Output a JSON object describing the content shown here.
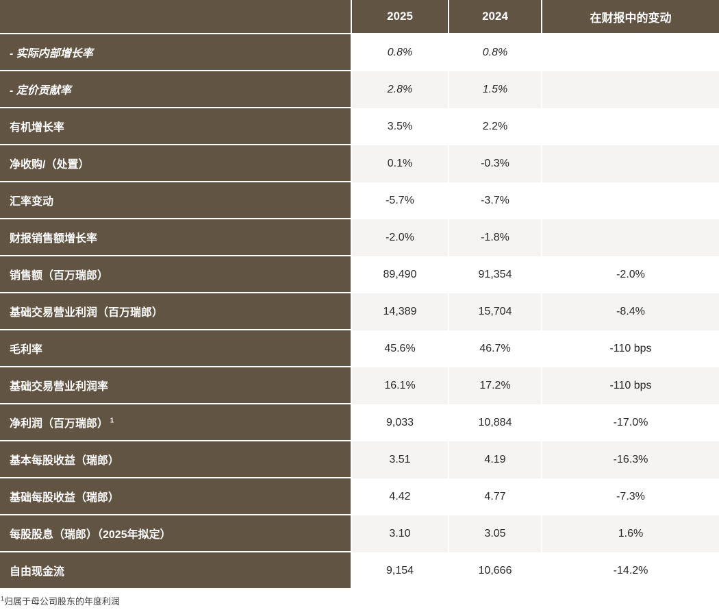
{
  "table": {
    "columns": [
      "",
      "2025",
      "2024",
      "在财报中的变动"
    ],
    "rows": [
      {
        "label": "- 实际内部增长率",
        "v2025": "0.8%",
        "v2024": "0.8%",
        "change": "",
        "italic": true
      },
      {
        "label": "- 定价贡献率",
        "v2025": "2.8%",
        "v2024": "1.5%",
        "change": "",
        "italic": true
      },
      {
        "label": "有机增长率",
        "v2025": "3.5%",
        "v2024": "2.2%",
        "change": "",
        "italic": false
      },
      {
        "label": "净收购/（处置）",
        "v2025": "0.1%",
        "v2024": "-0.3%",
        "change": "",
        "italic": false
      },
      {
        "label": "汇率变动",
        "v2025": "-5.7%",
        "v2024": "-3.7%",
        "change": "",
        "italic": false
      },
      {
        "label": "财报销售额增长率",
        "v2025": "-2.0%",
        "v2024": "-1.8%",
        "change": "",
        "italic": false
      },
      {
        "label": "销售额（百万瑞郎）",
        "v2025": "89,490",
        "v2024": "91,354",
        "change": "-2.0%",
        "italic": false
      },
      {
        "label": "基础交易营业利润（百万瑞郎）",
        "v2025": "14,389",
        "v2024": "15,704",
        "change": "-8.4%",
        "italic": false
      },
      {
        "label": "毛利率",
        "v2025": "45.6%",
        "v2024": "46.7%",
        "change": "-110 bps",
        "italic": false
      },
      {
        "label": "基础交易营业利润率",
        "v2025": "16.1%",
        "v2024": "17.2%",
        "change": "-110 bps",
        "italic": false
      },
      {
        "label": "净利润（百万瑞郎）",
        "label_sup": "1",
        "v2025": "9,033",
        "v2024": "10,884",
        "change": "-17.0%",
        "italic": false
      },
      {
        "label": "基本每股收益（瑞郎）",
        "v2025": "3.51",
        "v2024": "4.19",
        "change": "-16.3%",
        "italic": false
      },
      {
        "label": "基础每股收益（瑞郎）",
        "v2025": "4.42",
        "v2024": "4.77",
        "change": "-7.3%",
        "italic": false
      },
      {
        "label": "每股股息（瑞郎）（2025年拟定）",
        "v2025": "3.10",
        "v2024": "3.05",
        "change": "1.6%",
        "italic": false
      },
      {
        "label": "自由现金流",
        "v2025": "9,154",
        "v2024": "10,666",
        "change": "-14.2%",
        "italic": false
      }
    ],
    "footnote": {
      "sup": "1",
      "text": "归属于母公司股东的年度利润"
    }
  },
  "colors": {
    "header_brown": "#615442",
    "row_alt_gray": "#f5f4f2",
    "row_white": "#ffffff",
    "value_text": "#272727",
    "header_text": "#ffffff"
  }
}
